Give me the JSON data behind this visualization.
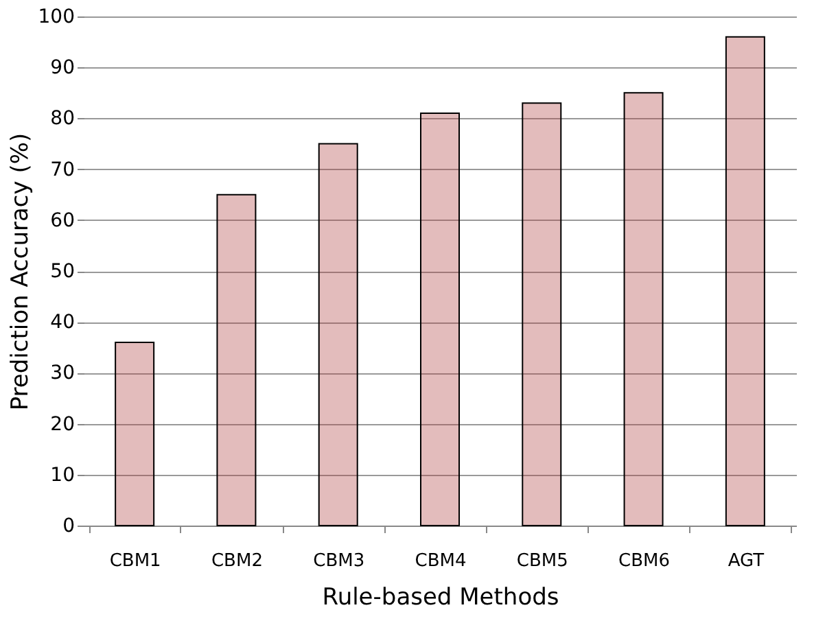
{
  "chart_data": {
    "type": "bar",
    "xlabel": "Rule-based Methods",
    "ylabel": "Prediction Accuracy (%)",
    "categories": [
      "CBM1",
      "CBM2",
      "CBM3",
      "CBM4",
      "CBM5",
      "CBM6",
      "AGT"
    ],
    "values": [
      36,
      65,
      75,
      81,
      83,
      85,
      96
    ],
    "color": "#b04040",
    "ylim": [
      0,
      100
    ],
    "yticks": [
      0,
      10,
      20,
      30,
      40,
      50,
      60,
      70,
      80,
      90,
      100
    ],
    "grid": "y"
  }
}
